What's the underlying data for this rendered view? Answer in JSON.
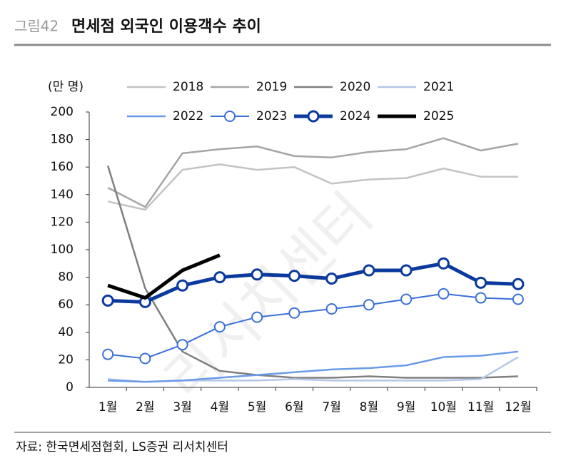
{
  "chart_data": {
    "type": "line",
    "figure_label": "그림42",
    "title": "면세점 외국인 이용객수 추이",
    "y_unit": "(만 명)",
    "source": "자료: 한국면세점협회, LS증권 리서치센터",
    "watermark": "리서치센터",
    "categories": [
      "1월",
      "2월",
      "3월",
      "4월",
      "5월",
      "6월",
      "7월",
      "8월",
      "9월",
      "10월",
      "11월",
      "12월"
    ],
    "ylim": [
      0,
      200
    ],
    "yticks": [
      0,
      20,
      40,
      60,
      80,
      100,
      120,
      140,
      160,
      180,
      200
    ],
    "series": [
      {
        "name": "2018",
        "color": "#c3c3c3",
        "marker": false,
        "values": [
          135,
          129,
          158,
          162,
          158,
          160,
          148,
          151,
          152,
          159,
          153,
          153
        ]
      },
      {
        "name": "2019",
        "color": "#a5a5a5",
        "marker": false,
        "values": [
          145,
          131,
          170,
          173,
          175,
          168,
          167,
          171,
          173,
          181,
          172,
          177
        ]
      },
      {
        "name": "2020",
        "color": "#7f7f7f",
        "marker": false,
        "values": [
          161,
          72,
          26,
          12,
          9,
          7,
          7,
          8,
          7,
          7,
          7,
          8
        ]
      },
      {
        "name": "2021",
        "color": "#b4c7e7",
        "marker": false,
        "values": [
          6,
          4,
          5,
          5,
          5,
          6,
          5,
          5,
          5,
          5,
          6,
          22
        ]
      },
      {
        "name": "2022",
        "color": "#6b9be8",
        "marker": false,
        "values": [
          5,
          4,
          5,
          7,
          9,
          11,
          13,
          14,
          16,
          22,
          23,
          26
        ]
      },
      {
        "name": "2023",
        "color": "#3a6fd8",
        "marker": true,
        "values": [
          24,
          21,
          31,
          44,
          51,
          54,
          57,
          60,
          64,
          68,
          65,
          64
        ]
      },
      {
        "name": "2024",
        "color": "#0b3a9e",
        "marker": true,
        "values": [
          63,
          62,
          74,
          80,
          82,
          81,
          79,
          85,
          85,
          90,
          76,
          75
        ]
      },
      {
        "name": "2025",
        "color": "#000000",
        "marker": false,
        "values": [
          74,
          65,
          85,
          96,
          null,
          null,
          null,
          null,
          null,
          null,
          null,
          null
        ]
      }
    ]
  }
}
